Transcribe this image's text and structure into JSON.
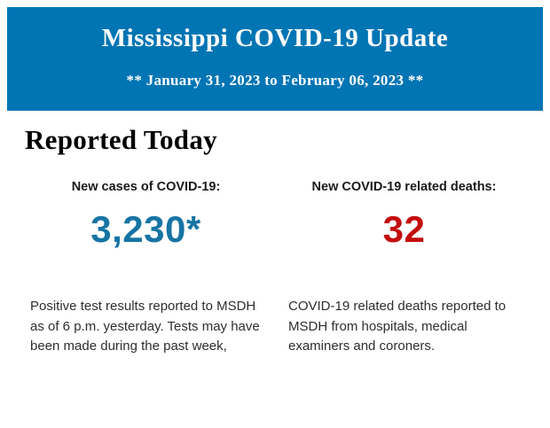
{
  "header": {
    "title": "Mississippi COVID-19 Update",
    "subtitle": "** January 31, 2023 to February 06, 2023 **",
    "background_color": "#0075B4",
    "text_color": "#ffffff"
  },
  "reported_today": {
    "heading": "Reported Today",
    "stats": [
      {
        "label": "New cases of COVID-19:",
        "value": "3,230*",
        "value_color": "#1774A4",
        "description": "Positive test results reported to MSDH as of 6 p.m. yesterday. Tests may have been made during the past week,"
      },
      {
        "label": "New COVID-19 related deaths:",
        "value": "32",
        "value_color": "#C40E0E",
        "description": "COVID-19 related deaths reported to MSDH from hospitals, medical examiners and coroners."
      }
    ]
  }
}
